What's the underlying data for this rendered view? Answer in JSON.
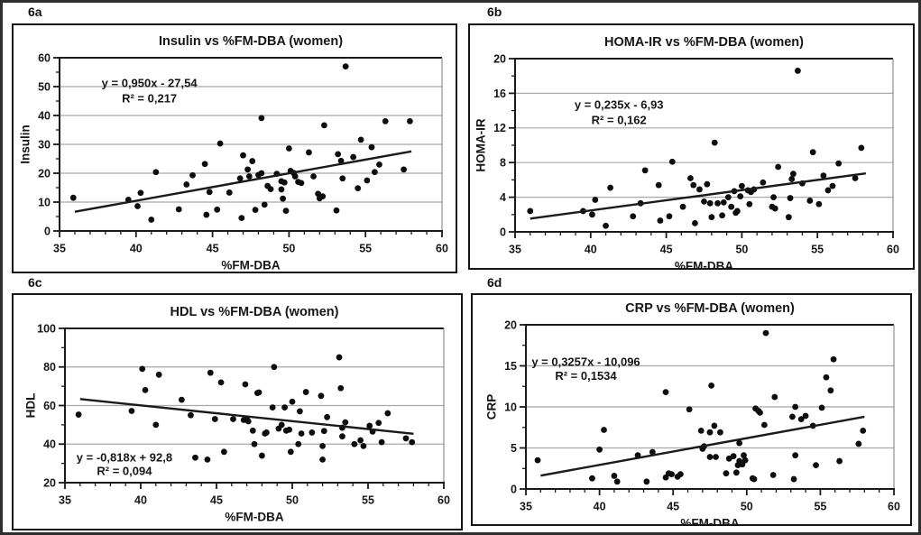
{
  "colors": {
    "text": "#1a1a1a",
    "grid": "#a8a8a8",
    "point": "#0d0d0d",
    "axis": "#1a1a1a",
    "plot_right_border": "#8f8f8f",
    "outer_frame": "#2e2e2e",
    "box_border": "#141414",
    "background": "#ffffff"
  },
  "chart_data": [
    {
      "type": "scatter",
      "panel_label": "6a",
      "title": "Insulin vs %FM-DBA (women)",
      "xlabel": "%FM-DBA",
      "ylabel": "Insulin",
      "xlim": [
        35,
        60
      ],
      "ylim": [
        0,
        60
      ],
      "xticks": [
        35,
        40,
        45,
        50,
        55,
        60
      ],
      "yticks": [
        0,
        10,
        20,
        30,
        40,
        50,
        60
      ],
      "xminor_step": 1,
      "yminor_step": 5,
      "grid": "horizontal",
      "equation": "y = 0,950x - 27,54",
      "r_squared": "R² = 0,217",
      "eq_pos": {
        "fx": 0.235,
        "fy1": 0.146,
        "fy2": 0.234
      },
      "trend": {
        "slope": 0.95,
        "intercept": -27.54,
        "x_start": 36,
        "x_end": 58
      },
      "points": [
        [
          35.9,
          11.5
        ],
        [
          39.5,
          10.8
        ],
        [
          40.1,
          8.6
        ],
        [
          40.3,
          13.2
        ],
        [
          41.0,
          3.9
        ],
        [
          41.3,
          20.4
        ],
        [
          42.8,
          7.5
        ],
        [
          43.3,
          16.1
        ],
        [
          43.7,
          19.3
        ],
        [
          44.5,
          23.2
        ],
        [
          44.6,
          5.6
        ],
        [
          44.8,
          13.5
        ],
        [
          45.3,
          7.4
        ],
        [
          45.5,
          30.3
        ],
        [
          46.1,
          13.3
        ],
        [
          46.8,
          18.2
        ],
        [
          46.9,
          4.5
        ],
        [
          47.0,
          26.2
        ],
        [
          47.3,
          21.3
        ],
        [
          47.4,
          18.9
        ],
        [
          47.6,
          24.2
        ],
        [
          47.8,
          7.3
        ],
        [
          48.0,
          19.4
        ],
        [
          48.2,
          20.0
        ],
        [
          48.2,
          39.1
        ],
        [
          48.4,
          9.1
        ],
        [
          48.6,
          15.6
        ],
        [
          48.8,
          14.5
        ],
        [
          49.2,
          19.8
        ],
        [
          49.5,
          17.2
        ],
        [
          49.5,
          14.4
        ],
        [
          49.6,
          11.2
        ],
        [
          49.7,
          16.8
        ],
        [
          49.8,
          7.0
        ],
        [
          50.0,
          28.6
        ],
        [
          50.1,
          20.8
        ],
        [
          50.3,
          20.1
        ],
        [
          50.4,
          18.9
        ],
        [
          50.6,
          17.0
        ],
        [
          50.8,
          16.6
        ],
        [
          51.3,
          27.2
        ],
        [
          51.6,
          18.9
        ],
        [
          51.9,
          12.9
        ],
        [
          52.0,
          11.3
        ],
        [
          52.2,
          12.0
        ],
        [
          52.3,
          36.6
        ],
        [
          53.1,
          7.1
        ],
        [
          53.2,
          26.6
        ],
        [
          53.4,
          24.3
        ],
        [
          53.5,
          18.2
        ],
        [
          53.7,
          57.0
        ],
        [
          54.2,
          25.6
        ],
        [
          54.5,
          14.8
        ],
        [
          54.7,
          31.6
        ],
        [
          55.1,
          17.5
        ],
        [
          55.4,
          29.0
        ],
        [
          55.6,
          20.4
        ],
        [
          55.9,
          23.0
        ],
        [
          56.3,
          38.0
        ],
        [
          57.5,
          21.3
        ],
        [
          57.9,
          38.0
        ]
      ]
    },
    {
      "type": "scatter",
      "panel_label": "6b",
      "title": "HOMA-IR vs %FM-DBA (women)",
      "xlabel": "%FM-DBA",
      "ylabel": "HOMA-IR",
      "xlim": [
        35,
        60
      ],
      "ylim": [
        0,
        20
      ],
      "xticks": [
        35,
        40,
        45,
        50,
        55,
        60
      ],
      "yticks": [
        0,
        4,
        8,
        12,
        16,
        20
      ],
      "xminor_step": 1,
      "yminor_step": 2,
      "grid": "horizontal",
      "equation": "y = 0,235x - 6,93",
      "r_squared": "R² = 0,162",
      "eq_pos": {
        "fx": 0.275,
        "fy1": 0.266,
        "fy2": 0.354
      },
      "trend": {
        "slope": 0.235,
        "intercept": -6.93,
        "x_start": 36,
        "x_end": 58.2
      },
      "points": [
        [
          36.0,
          2.4
        ],
        [
          39.5,
          2.4
        ],
        [
          40.1,
          2.0
        ],
        [
          40.3,
          3.7
        ],
        [
          41.0,
          0.7
        ],
        [
          41.3,
          5.1
        ],
        [
          42.8,
          1.8
        ],
        [
          43.3,
          3.3
        ],
        [
          43.6,
          7.1
        ],
        [
          44.5,
          5.4
        ],
        [
          44.6,
          1.3
        ],
        [
          45.2,
          1.8
        ],
        [
          45.4,
          8.1
        ],
        [
          46.1,
          2.9
        ],
        [
          46.6,
          6.2
        ],
        [
          46.8,
          5.4
        ],
        [
          46.9,
          1.0
        ],
        [
          47.2,
          4.9
        ],
        [
          47.5,
          3.5
        ],
        [
          47.7,
          5.5
        ],
        [
          47.9,
          3.3
        ],
        [
          48.0,
          1.7
        ],
        [
          48.2,
          10.3
        ],
        [
          48.4,
          3.3
        ],
        [
          48.7,
          1.9
        ],
        [
          48.8,
          3.4
        ],
        [
          49.1,
          4.0
        ],
        [
          49.3,
          2.9
        ],
        [
          49.5,
          4.7
        ],
        [
          49.6,
          2.2
        ],
        [
          49.7,
          2.4
        ],
        [
          49.9,
          4.1
        ],
        [
          50.0,
          5.3
        ],
        [
          50.4,
          4.8
        ],
        [
          50.5,
          3.2
        ],
        [
          50.6,
          4.6
        ],
        [
          50.8,
          4.9
        ],
        [
          51.4,
          5.7
        ],
        [
          52.0,
          2.9
        ],
        [
          52.1,
          4.0
        ],
        [
          52.2,
          2.7
        ],
        [
          52.4,
          7.5
        ],
        [
          53.1,
          1.7
        ],
        [
          53.2,
          3.9
        ],
        [
          53.3,
          6.1
        ],
        [
          53.4,
          6.7
        ],
        [
          53.7,
          18.6
        ],
        [
          54.0,
          5.6
        ],
        [
          54.5,
          3.6
        ],
        [
          54.7,
          9.2
        ],
        [
          55.1,
          3.2
        ],
        [
          55.4,
          6.5
        ],
        [
          55.7,
          4.8
        ],
        [
          56.0,
          5.3
        ],
        [
          56.4,
          7.9
        ],
        [
          57.5,
          6.2
        ],
        [
          57.9,
          9.7
        ]
      ]
    },
    {
      "type": "scatter",
      "panel_label": "6c",
      "title": "HDL vs %FM-DBA (women)",
      "xlabel": "%FM-DBA",
      "ylabel": "HDL",
      "xlim": [
        35,
        60
      ],
      "ylim": [
        20,
        100
      ],
      "xticks": [
        35,
        40,
        45,
        50,
        55,
        60
      ],
      "yticks": [
        20,
        40,
        60,
        80,
        100
      ],
      "xminor_step": 1,
      "yminor_step": 10,
      "grid": "horizontal",
      "equation": "y = -0,818x + 92,8",
      "r_squared": "R² = 0,094",
      "eq_pos": {
        "fx": 0.157,
        "fy1": 0.836,
        "fy2": 0.924
      },
      "trend": {
        "slope": -0.818,
        "intercept": 92.8,
        "x_start": 36,
        "x_end": 58
      },
      "points": [
        [
          35.9,
          55.3
        ],
        [
          39.4,
          57.2
        ],
        [
          40.1,
          79.0
        ],
        [
          40.3,
          68.0
        ],
        [
          41.0,
          50.0
        ],
        [
          41.2,
          76.0
        ],
        [
          42.7,
          63.0
        ],
        [
          43.3,
          55.0
        ],
        [
          43.6,
          33.0
        ],
        [
          44.4,
          32.0
        ],
        [
          44.6,
          77.0
        ],
        [
          44.9,
          53.0
        ],
        [
          45.3,
          72.0
        ],
        [
          45.5,
          36.0
        ],
        [
          46.1,
          53.0
        ],
        [
          46.8,
          52.5
        ],
        [
          46.9,
          71.0
        ],
        [
          47.0,
          53.0
        ],
        [
          47.1,
          51.8
        ],
        [
          47.4,
          47.0
        ],
        [
          47.5,
          40.0
        ],
        [
          47.7,
          66.5
        ],
        [
          47.8,
          66.8
        ],
        [
          48.0,
          34.0
        ],
        [
          48.2,
          45.5
        ],
        [
          48.3,
          46.0
        ],
        [
          48.7,
          59.0
        ],
        [
          48.8,
          80.0
        ],
        [
          49.1,
          48.0
        ],
        [
          49.3,
          50.0
        ],
        [
          49.5,
          59.0
        ],
        [
          49.6,
          47.0
        ],
        [
          49.8,
          47.5
        ],
        [
          49.9,
          36.0
        ],
        [
          50.0,
          62.0
        ],
        [
          50.4,
          40.0
        ],
        [
          50.5,
          57.0
        ],
        [
          50.6,
          45.5
        ],
        [
          50.9,
          67.0
        ],
        [
          51.3,
          46.0
        ],
        [
          51.9,
          65.0
        ],
        [
          52.0,
          39.0
        ],
        [
          52.0,
          32.0
        ],
        [
          52.1,
          46.8
        ],
        [
          52.3,
          54.0
        ],
        [
          53.1,
          85.0
        ],
        [
          53.2,
          69.0
        ],
        [
          53.3,
          48.5
        ],
        [
          53.3,
          44.0
        ],
        [
          53.5,
          51.3
        ],
        [
          54.1,
          40.0
        ],
        [
          54.5,
          42.0
        ],
        [
          54.7,
          39.0
        ],
        [
          55.1,
          49.5
        ],
        [
          55.3,
          46.5
        ],
        [
          55.7,
          51.0
        ],
        [
          55.9,
          41.0
        ],
        [
          56.3,
          56.0
        ],
        [
          57.5,
          43.0
        ],
        [
          57.9,
          41.0
        ]
      ]
    },
    {
      "type": "scatter",
      "panel_label": "6d",
      "title": "CRP vs %FM-DBA (women)",
      "xlabel": "%FM-DBA",
      "ylabel": "CRP",
      "xlim": [
        35,
        60
      ],
      "ylim": [
        0,
        20
      ],
      "xticks": [
        35,
        40,
        45,
        50,
        55,
        60
      ],
      "yticks": [
        0,
        5,
        10,
        15,
        20
      ],
      "xminor_step": 1,
      "yminor_step": 2.5,
      "grid": "horizontal",
      "equation": "y = 0,3257x - 10,096",
      "r_squared": "R² = 0,1534",
      "eq_pos": {
        "fx": 0.163,
        "fy1": 0.225,
        "fy2": 0.31
      },
      "trend": {
        "slope": 0.3257,
        "intercept": -10.096,
        "x_start": 36,
        "x_end": 58
      },
      "points": [
        [
          35.8,
          3.5
        ],
        [
          39.5,
          1.3
        ],
        [
          40.0,
          4.8
        ],
        [
          40.3,
          7.2
        ],
        [
          41.0,
          1.6
        ],
        [
          41.2,
          0.9
        ],
        [
          42.6,
          4.1
        ],
        [
          43.2,
          0.9
        ],
        [
          43.6,
          4.5
        ],
        [
          44.5,
          11.8
        ],
        [
          44.5,
          1.4
        ],
        [
          44.7,
          1.9
        ],
        [
          44.9,
          1.8
        ],
        [
          45.3,
          1.5
        ],
        [
          45.5,
          1.8
        ],
        [
          46.1,
          9.7
        ],
        [
          46.9,
          7.1
        ],
        [
          47.0,
          4.9
        ],
        [
          47.1,
          5.2
        ],
        [
          47.5,
          6.9
        ],
        [
          47.5,
          3.9
        ],
        [
          47.6,
          12.6
        ],
        [
          47.8,
          7.7
        ],
        [
          47.9,
          3.9
        ],
        [
          48.2,
          6.9
        ],
        [
          48.6,
          1.9
        ],
        [
          48.8,
          3.7
        ],
        [
          49.1,
          4.0
        ],
        [
          49.3,
          2.0
        ],
        [
          49.4,
          2.9
        ],
        [
          49.5,
          3.4
        ],
        [
          49.5,
          5.6
        ],
        [
          49.7,
          3.0
        ],
        [
          49.8,
          4.1
        ],
        [
          49.9,
          3.5
        ],
        [
          50.4,
          1.3
        ],
        [
          50.5,
          1.2
        ],
        [
          50.6,
          9.8
        ],
        [
          50.8,
          9.5
        ],
        [
          50.9,
          9.3
        ],
        [
          51.2,
          7.8
        ],
        [
          51.3,
          19.0
        ],
        [
          51.8,
          1.7
        ],
        [
          51.9,
          11.2
        ],
        [
          53.1,
          8.8
        ],
        [
          53.2,
          1.2
        ],
        [
          53.3,
          4.1
        ],
        [
          53.3,
          10.0
        ],
        [
          53.7,
          8.5
        ],
        [
          54.0,
          8.9
        ],
        [
          54.5,
          7.7
        ],
        [
          54.7,
          2.9
        ],
        [
          55.1,
          9.9
        ],
        [
          55.4,
          13.6
        ],
        [
          55.7,
          12.0
        ],
        [
          55.9,
          15.8
        ],
        [
          56.3,
          3.4
        ],
        [
          57.6,
          5.5
        ],
        [
          57.9,
          7.1
        ]
      ]
    }
  ]
}
